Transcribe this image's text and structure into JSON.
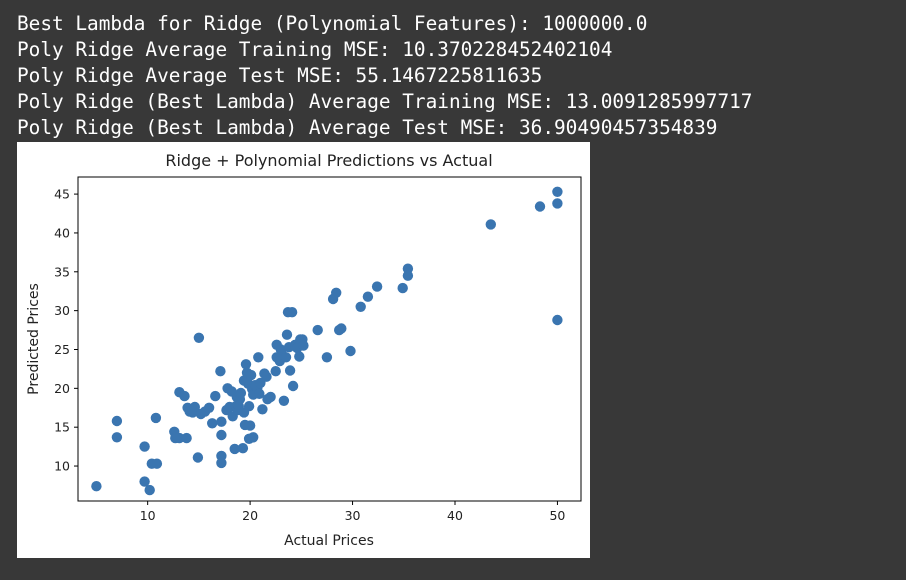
{
  "output": {
    "lines": [
      "Best Lambda for Ridge (Polynomial Features): 1000000.0",
      "Poly Ridge Average Training MSE: 10.370228452402104",
      "Poly Ridge Average Test MSE: 55.1467225811635",
      "Poly Ridge (Best Lambda) Average Training MSE: 13.0091285997717",
      "Poly Ridge (Best Lambda) Average Test MSE: 36.90490457354839"
    ]
  },
  "colors": {
    "background": "#383838",
    "text": "#ffffff",
    "figure_background": "#ffffff",
    "marker": "#3a75b0"
  },
  "chart_data": {
    "type": "scatter",
    "title": "Ridge + Polynomial Predictions vs Actual",
    "xlabel": "Actual Prices",
    "ylabel": "Predicted Prices",
    "xlim": [
      3.2,
      52.3
    ],
    "ylim": [
      5.5,
      47.2
    ],
    "xticks": [
      10,
      20,
      30,
      40,
      50
    ],
    "yticks": [
      10,
      15,
      20,
      25,
      30,
      35,
      40,
      45
    ],
    "grid": false,
    "legend": "none",
    "points": [
      [
        5.0,
        7.4
      ],
      [
        7.0,
        15.8
      ],
      [
        7.0,
        13.7
      ],
      [
        9.7,
        12.5
      ],
      [
        9.7,
        8.0
      ],
      [
        10.2,
        6.9
      ],
      [
        10.4,
        10.3
      ],
      [
        10.9,
        10.3
      ],
      [
        10.8,
        16.2
      ],
      [
        12.6,
        14.4
      ],
      [
        12.7,
        13.6
      ],
      [
        13.1,
        13.6
      ],
      [
        13.1,
        19.5
      ],
      [
        13.6,
        19.0
      ],
      [
        13.8,
        13.6
      ],
      [
        13.9,
        17.5
      ],
      [
        14.1,
        17.0
      ],
      [
        14.4,
        16.9
      ],
      [
        14.6,
        17.6
      ],
      [
        14.9,
        11.1
      ],
      [
        15.0,
        26.5
      ],
      [
        15.2,
        16.7
      ],
      [
        15.6,
        17.0
      ],
      [
        16.0,
        17.5
      ],
      [
        16.3,
        15.5
      ],
      [
        16.6,
        19.0
      ],
      [
        17.1,
        22.2
      ],
      [
        17.2,
        14.0
      ],
      [
        17.2,
        11.3
      ],
      [
        17.2,
        10.4
      ],
      [
        17.2,
        15.7
      ],
      [
        17.7,
        17.2
      ],
      [
        17.8,
        20.0
      ],
      [
        18.0,
        17.6
      ],
      [
        18.2,
        19.6
      ],
      [
        18.3,
        16.4
      ],
      [
        18.5,
        12.2
      ],
      [
        18.6,
        17.7
      ],
      [
        18.7,
        18.9
      ],
      [
        18.8,
        17.2
      ],
      [
        18.9,
        17.7
      ],
      [
        19.0,
        18.6
      ],
      [
        19.1,
        19.4
      ],
      [
        19.3,
        12.3
      ],
      [
        19.4,
        21.0
      ],
      [
        19.4,
        16.9
      ],
      [
        19.5,
        15.3
      ],
      [
        19.6,
        23.1
      ],
      [
        19.7,
        22.0
      ],
      [
        19.8,
        20.6
      ],
      [
        19.9,
        13.5
      ],
      [
        19.9,
        17.7
      ],
      [
        20.0,
        15.2
      ],
      [
        20.1,
        21.7
      ],
      [
        20.2,
        19.9
      ],
      [
        20.3,
        19.2
      ],
      [
        20.3,
        13.7
      ],
      [
        20.5,
        20.4
      ],
      [
        20.7,
        20.0
      ],
      [
        20.8,
        24.0
      ],
      [
        20.9,
        19.3
      ],
      [
        21.0,
        20.7
      ],
      [
        21.2,
        17.3
      ],
      [
        21.4,
        21.9
      ],
      [
        21.6,
        21.5
      ],
      [
        21.7,
        18.6
      ],
      [
        22.0,
        18.9
      ],
      [
        22.5,
        22.2
      ],
      [
        22.6,
        24.0
      ],
      [
        22.6,
        25.6
      ],
      [
        22.9,
        23.5
      ],
      [
        23.0,
        25.0
      ],
      [
        23.1,
        24.4
      ],
      [
        23.3,
        18.4
      ],
      [
        23.5,
        24.0
      ],
      [
        23.6,
        26.9
      ],
      [
        23.7,
        29.8
      ],
      [
        23.8,
        25.3
      ],
      [
        23.9,
        22.3
      ],
      [
        24.1,
        29.8
      ],
      [
        24.2,
        20.3
      ],
      [
        24.4,
        25.6
      ],
      [
        24.6,
        25.2
      ],
      [
        24.8,
        24.1
      ],
      [
        24.9,
        26.3
      ],
      [
        25.1,
        26.3
      ],
      [
        25.2,
        25.5
      ],
      [
        26.6,
        27.5
      ],
      [
        27.5,
        24.0
      ],
      [
        28.1,
        31.5
      ],
      [
        28.4,
        32.3
      ],
      [
        28.7,
        27.5
      ],
      [
        28.9,
        27.7
      ],
      [
        29.8,
        24.8
      ],
      [
        30.8,
        30.5
      ],
      [
        31.5,
        31.8
      ],
      [
        32.4,
        33.1
      ],
      [
        34.9,
        32.9
      ],
      [
        35.4,
        35.4
      ],
      [
        35.4,
        34.5
      ],
      [
        43.5,
        41.1
      ],
      [
        48.3,
        43.4
      ],
      [
        50.0,
        45.3
      ],
      [
        50.0,
        43.8
      ],
      [
        50.0,
        28.8
      ]
    ]
  }
}
